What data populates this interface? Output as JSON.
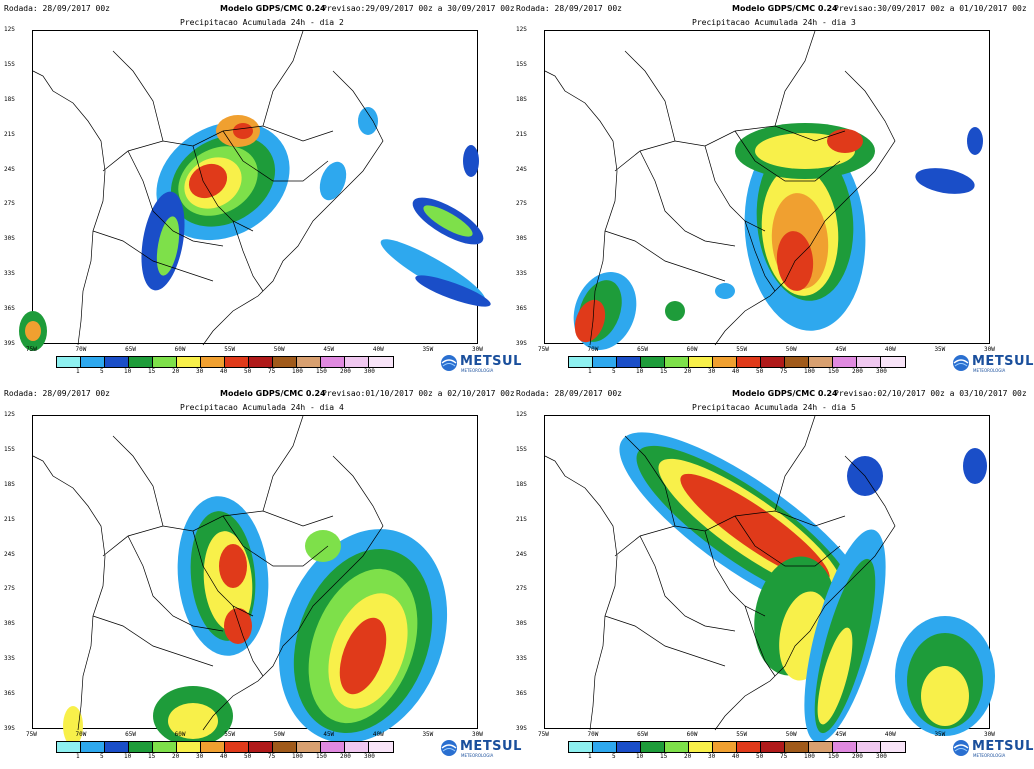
{
  "model_label": "Modelo GDPS/CMC 0.24",
  "run_label": "Rodada: 28/09/2017 00z",
  "brand": {
    "name": "METSUL",
    "sub": "METEOROLOGIA"
  },
  "lat_ticks": [
    "12S",
    "15S",
    "18S",
    "21S",
    "24S",
    "27S",
    "30S",
    "33S",
    "36S",
    "39S"
  ],
  "lon_ticks": [
    "75W",
    "70W",
    "65W",
    "60W",
    "55W",
    "50W",
    "45W",
    "40W",
    "35W",
    "30W"
  ],
  "legend_labels": [
    "1",
    "5",
    "10",
    "15",
    "20",
    "30",
    "40",
    "50",
    "75",
    "100",
    "150",
    "200",
    "300"
  ],
  "legend_colors": [
    "#8ef0f0",
    "#2ea8ee",
    "#1a4ec8",
    "#1e9c3a",
    "#7ee04a",
    "#f8f04a",
    "#f0a030",
    "#e03a1a",
    "#b01a1a",
    "#a05a1a",
    "#d8a070",
    "#e08ae0",
    "#f0c8f0",
    "#f8e4f8"
  ],
  "panels": [
    {
      "id": "dia2",
      "previsao": "Previsao:29/09/2017 00z a 30/09/2017 00z",
      "subtitle": "Precipitacao Acumulada 24h - dia 2"
    },
    {
      "id": "dia3",
      "previsao": "Previsao:30/09/2017 00z a 01/10/2017 00z",
      "subtitle": "Precipitacao Acumulada 24h - dia 3"
    },
    {
      "id": "dia4",
      "previsao": "Previsao:01/10/2017 00z a 02/10/2017 00z",
      "subtitle": "Precipitacao Acumulada 24h - dia 4"
    },
    {
      "id": "dia5",
      "previsao": "Previsao:02/10/2017 00z a 03/10/2017 00z",
      "subtitle": "Precipitacao Acumulada 24h - dia 5"
    }
  ]
}
